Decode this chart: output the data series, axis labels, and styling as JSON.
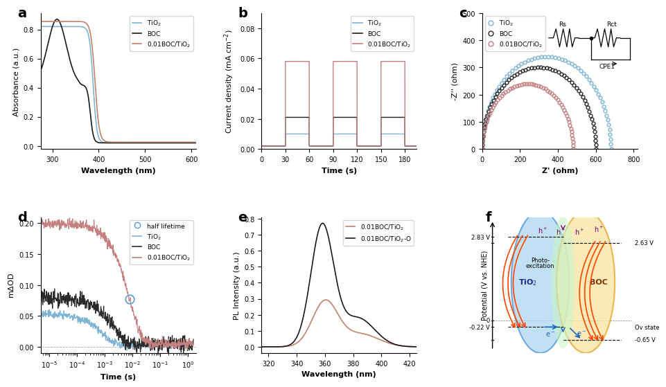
{
  "panel_label_fontsize": 14,
  "panel_label_weight": "bold",
  "a_xlabel": "Wavelength (nm)",
  "a_ylabel": "Absorbance (a.u.)",
  "a_xlim": [
    275,
    610
  ],
  "a_xticks": [
    300,
    400,
    500,
    600
  ],
  "a_colors": [
    "#7fb3d3",
    "#1a1a1a",
    "#c0816a"
  ],
  "a_legend": [
    "TiO$_2$",
    "BOC",
    "0.01BOC/TiO$_2$"
  ],
  "b_xlabel": "Time (s)",
  "b_ylabel": "Current density (mA cm$^{-2}$)",
  "b_xlim": [
    0,
    195
  ],
  "b_ylim": [
    0,
    0.09
  ],
  "b_yticks": [
    0.0,
    0.02,
    0.04,
    0.06,
    0.08
  ],
  "b_xticks": [
    0,
    30,
    60,
    90,
    120,
    150,
    180
  ],
  "b_colors": [
    "#7fb3d3",
    "#1a1a1a",
    "#c47f7f"
  ],
  "b_legend": [
    "TiO$_2$",
    "BOC",
    "0.01BOC/TiO$_2$"
  ],
  "b_tio2_level": 0.01,
  "b_boc_level": 0.021,
  "b_boctio2_level": 0.058,
  "b_baseline": 0.002,
  "c_xlabel": "Z' (ohm)",
  "c_ylabel": "-Z'' (ohm)",
  "c_xlim": [
    0,
    820
  ],
  "c_ylim": [
    0,
    500
  ],
  "c_xticks": [
    0,
    200,
    400,
    600,
    800
  ],
  "c_yticks": [
    0,
    100,
    200,
    300,
    400,
    500
  ],
  "c_colors": [
    "#7fb3d3",
    "#2a2a2a",
    "#c47f7f"
  ],
  "c_legend": [
    "TiO$_2$",
    "BOC",
    "0.01BOC/TiO$_2$"
  ],
  "c_tio2_r": 340,
  "c_boc_r": 300,
  "c_boctio2_r": 240,
  "d_xlabel": "Time (s)",
  "d_ylabel": "m$\\Delta$OD",
  "d_ylim": [
    -0.01,
    0.21
  ],
  "d_yticks": [
    0.0,
    0.05,
    0.1,
    0.15,
    0.2
  ],
  "d_colors": [
    "#5a9bd5",
    "#7fb3d3",
    "#2a2a2a",
    "#c47f7f"
  ],
  "d_legend": [
    "half lifetime",
    "TiO$_2$",
    "BOC",
    "0.01BOC/TiO$_2$"
  ],
  "e_xlabel": "Wavelength (nm)",
  "e_ylabel": "PL Intensity (a.u.)",
  "e_xlim": [
    315,
    425
  ],
  "e_xticks": [
    320,
    340,
    360,
    380,
    400,
    420
  ],
  "e_colors": [
    "#c0816a",
    "#1a1a1a"
  ],
  "e_legend": [
    "0.01BOC/TiO$_2$",
    "0.01BOC/TiO$_2$-O"
  ],
  "f_tio2_cb": -0.22,
  "f_tio2_vb": 2.83,
  "f_boc_cb": -0.65,
  "f_boc_vb": 2.63,
  "f_ov_state": -0.22,
  "f_tio2_color": "#aed6f1",
  "f_boc_color": "#f9e4a0",
  "f_overlap_color": "#c8f5c8",
  "f_ylabel": "Potential (V vs. NHE)"
}
